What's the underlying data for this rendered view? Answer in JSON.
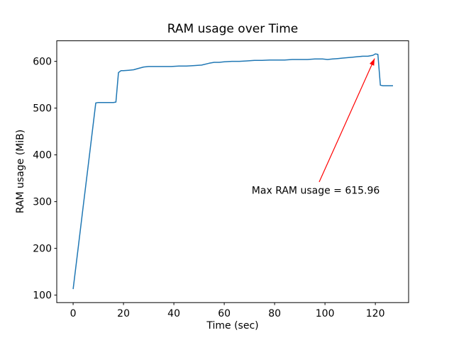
{
  "chart_data": {
    "type": "line",
    "title": "RAM usage over Time",
    "xlabel": "Time (sec)",
    "ylabel": "RAM usage (MiB)",
    "xlim": [
      -6.5,
      133.2
    ],
    "ylim": [
      84,
      644
    ],
    "xticks": [
      0,
      20,
      40,
      60,
      80,
      100,
      120
    ],
    "yticks": [
      100,
      200,
      300,
      400,
      500,
      600
    ],
    "grid": false,
    "legend": null,
    "background_color": "#ffffff",
    "spine_color": "#000000",
    "series": [
      {
        "name": "RAM usage",
        "color": "#1f77b4",
        "points": [
          [
            0,
            113
          ],
          [
            2,
            201
          ],
          [
            4,
            290
          ],
          [
            6,
            378
          ],
          [
            8,
            467
          ],
          [
            9,
            511
          ],
          [
            10,
            512
          ],
          [
            12,
            512
          ],
          [
            14,
            512
          ],
          [
            16,
            512
          ],
          [
            17,
            513
          ],
          [
            18,
            576
          ],
          [
            19,
            580
          ],
          [
            20,
            580
          ],
          [
            22,
            581
          ],
          [
            24,
            582
          ],
          [
            26,
            585
          ],
          [
            28,
            588
          ],
          [
            30,
            589
          ],
          [
            33,
            589
          ],
          [
            36,
            589
          ],
          [
            39,
            589
          ],
          [
            42,
            590
          ],
          [
            45,
            590
          ],
          [
            48,
            591
          ],
          [
            51,
            592
          ],
          [
            54,
            596
          ],
          [
            56,
            598
          ],
          [
            58,
            598
          ],
          [
            60,
            599
          ],
          [
            63,
            600
          ],
          [
            66,
            600
          ],
          [
            69,
            601
          ],
          [
            72,
            602
          ],
          [
            75,
            602
          ],
          [
            78,
            603
          ],
          [
            81,
            603
          ],
          [
            84,
            603
          ],
          [
            87,
            604
          ],
          [
            90,
            604
          ],
          [
            93,
            604
          ],
          [
            96,
            605
          ],
          [
            99,
            605
          ],
          [
            101,
            604
          ],
          [
            103,
            605
          ],
          [
            105,
            606
          ],
          [
            107,
            607
          ],
          [
            109,
            608
          ],
          [
            111,
            609
          ],
          [
            113,
            610
          ],
          [
            115,
            611
          ],
          [
            117,
            611
          ],
          [
            119,
            613
          ],
          [
            120,
            615.96
          ],
          [
            121,
            615
          ],
          [
            122,
            549
          ],
          [
            123,
            548
          ],
          [
            125,
            548
          ],
          [
            127,
            548
          ]
        ]
      }
    ],
    "max_value": 615.96,
    "annotation": {
      "text": "Max RAM usage = 615.96",
      "color": "#ff0000",
      "arrow_start": [
        97.7,
        342
      ],
      "arrow_end": [
        119.7,
        606
      ],
      "text_pos": [
        70.9,
        317
      ]
    }
  }
}
